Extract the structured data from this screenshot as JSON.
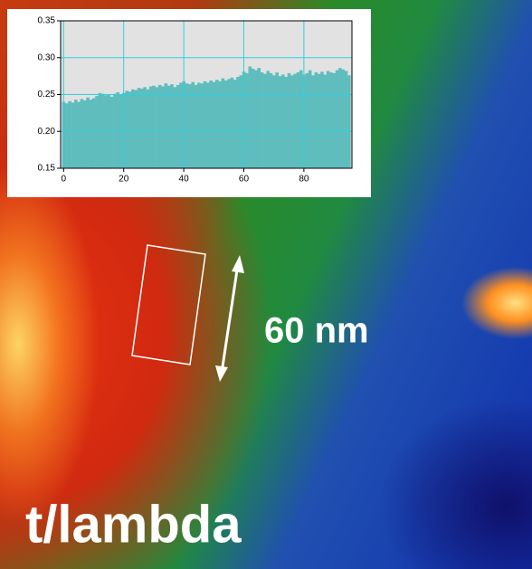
{
  "chart_data": {
    "type": "bar",
    "x": [
      0,
      1,
      2,
      3,
      4,
      5,
      6,
      7,
      8,
      9,
      10,
      11,
      12,
      13,
      14,
      15,
      16,
      17,
      18,
      19,
      20,
      21,
      22,
      23,
      24,
      25,
      26,
      27,
      28,
      29,
      30,
      31,
      32,
      33,
      34,
      35,
      36,
      37,
      38,
      39,
      40,
      41,
      42,
      43,
      44,
      45,
      46,
      47,
      48,
      49,
      50,
      51,
      52,
      53,
      54,
      55,
      56,
      57,
      58,
      59,
      60,
      61,
      62,
      63,
      64,
      65,
      66,
      67,
      68,
      69,
      70,
      71,
      72,
      73,
      74,
      75,
      76,
      77,
      78,
      79,
      80,
      81,
      82,
      83,
      84,
      85,
      86,
      87,
      88,
      89,
      90,
      91,
      92,
      93,
      94,
      95
    ],
    "values": [
      0.24,
      0.238,
      0.241,
      0.239,
      0.243,
      0.24,
      0.244,
      0.242,
      0.246,
      0.243,
      0.245,
      0.248,
      0.252,
      0.251,
      0.249,
      0.25,
      0.247,
      0.251,
      0.253,
      0.25,
      0.252,
      0.255,
      0.254,
      0.257,
      0.256,
      0.259,
      0.258,
      0.26,
      0.257,
      0.261,
      0.262,
      0.26,
      0.263,
      0.261,
      0.265,
      0.262,
      0.264,
      0.26,
      0.263,
      0.266,
      0.268,
      0.265,
      0.264,
      0.267,
      0.263,
      0.266,
      0.265,
      0.268,
      0.266,
      0.269,
      0.267,
      0.27,
      0.268,
      0.272,
      0.269,
      0.271,
      0.273,
      0.27,
      0.274,
      0.276,
      0.281,
      0.279,
      0.288,
      0.285,
      0.283,
      0.286,
      0.28,
      0.278,
      0.282,
      0.279,
      0.276,
      0.28,
      0.275,
      0.277,
      0.274,
      0.279,
      0.276,
      0.278,
      0.28,
      0.283,
      0.277,
      0.279,
      0.283,
      0.276,
      0.28,
      0.278,
      0.281,
      0.277,
      0.282,
      0.28,
      0.279,
      0.283,
      0.286,
      0.284,
      0.282,
      0.276
    ],
    "color": "#5fbdbd",
    "xlim": [
      -1,
      96
    ],
    "xticks": [
      0,
      20,
      40,
      60,
      80
    ],
    "ylim": [
      0.15,
      0.35
    ],
    "yticks": [
      0.15,
      {
        "value": 0.2,
        "label": "0.20"
      },
      0.25,
      {
        "value": 0.3,
        "label": "0.30"
      },
      0.35
    ],
    "grid": true
  },
  "image": {
    "scale_label": "60 nm",
    "map_label": "t/lambda"
  }
}
